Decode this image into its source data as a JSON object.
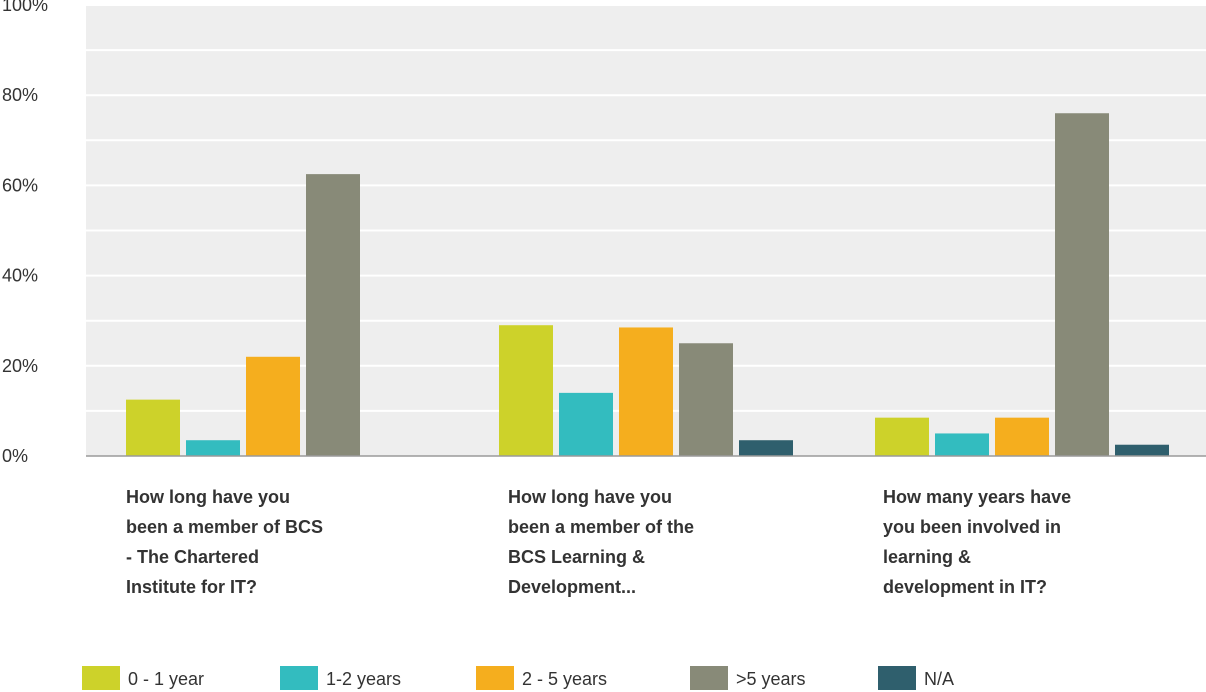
{
  "chart_data": {
    "type": "bar",
    "title": "",
    "xlabel": "",
    "ylabel": "",
    "ylim": [
      0,
      100
    ],
    "yticks": [
      "0%",
      "20%",
      "40%",
      "60%",
      "80%",
      "100%"
    ],
    "grid": true,
    "legend_position": "bottom",
    "categories": [
      [
        "How long have you",
        "been a member of BCS",
        "- The Chartered",
        "Institute for IT?"
      ],
      [
        "How long have you",
        "been a member of the",
        "BCS Learning &",
        "Development..."
      ],
      [
        "How many years have",
        "you been involved in",
        "learning &",
        "development in IT?"
      ]
    ],
    "series": [
      {
        "name": "0 - 1 year",
        "color": "#cdd22a",
        "values": [
          12.5,
          29,
          8.5
        ]
      },
      {
        "name": "1-2 years",
        "color": "#33bcbf",
        "values": [
          3.5,
          14,
          5
        ]
      },
      {
        "name": "2 - 5 years",
        "color": "#f5ae1e",
        "values": [
          22,
          28.5,
          8.5
        ]
      },
      {
        "name": ">5 years",
        "color": "#888a78",
        "values": [
          62.5,
          25,
          76
        ]
      },
      {
        "name": "N/A",
        "color": "#2f5f6d",
        "values": [
          0,
          3.5,
          2.5
        ]
      }
    ]
  }
}
